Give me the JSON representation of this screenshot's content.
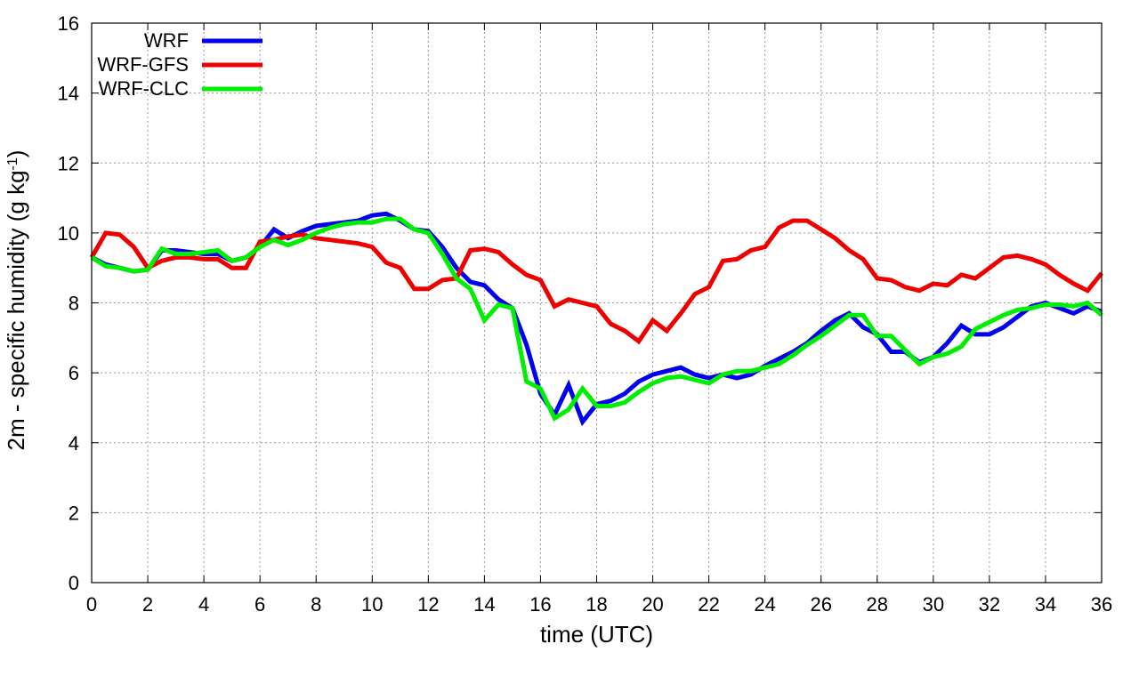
{
  "chart_data": {
    "type": "line",
    "xlabel": "time (UTC)",
    "ylabel_main": "2m - specific humidity (g kg",
    "ylabel_sup": "-1",
    "ylabel_end": ")",
    "xlim": [
      0,
      36
    ],
    "ylim": [
      0,
      16
    ],
    "x_ticks": [
      "0",
      "2",
      "4",
      "6",
      "8",
      "10",
      "12",
      "14",
      "16",
      "18",
      "20",
      "22",
      "24",
      "26",
      "28",
      "30",
      "32",
      "34",
      "36"
    ],
    "y_ticks": [
      "0",
      "2",
      "4",
      "6",
      "8",
      "10",
      "12",
      "14",
      "16"
    ],
    "grid": true,
    "legend_position": "top-left",
    "x": [
      0,
      0.5,
      1,
      1.5,
      2,
      2.5,
      3,
      3.5,
      4,
      4.5,
      5,
      5.5,
      6,
      6.5,
      7,
      7.5,
      8,
      8.5,
      9,
      9.5,
      10,
      10.5,
      11,
      11.5,
      12,
      12.5,
      13,
      13.5,
      14,
      14.5,
      15,
      15.5,
      16,
      16.5,
      17,
      17.5,
      18,
      18.5,
      19,
      19.5,
      20,
      20.5,
      21,
      21.5,
      22,
      22.5,
      23,
      23.5,
      24,
      24.5,
      25,
      25.5,
      26,
      26.5,
      27,
      27.5,
      28,
      28.5,
      29,
      29.5,
      30,
      30.5,
      31,
      31.5,
      32,
      32.5,
      33,
      33.5,
      34,
      34.5,
      35,
      35.5,
      36
    ],
    "series": [
      {
        "name": "WRF",
        "color": "#0000ee",
        "values": [
          9.3,
          9.1,
          9.0,
          8.9,
          8.95,
          9.5,
          9.5,
          9.45,
          9.4,
          9.4,
          9.2,
          9.3,
          9.6,
          10.1,
          9.85,
          10.05,
          10.2,
          10.25,
          10.3,
          10.35,
          10.5,
          10.55,
          10.35,
          10.1,
          10.05,
          9.6,
          9.0,
          8.6,
          8.5,
          8.1,
          7.85,
          6.8,
          5.4,
          4.8,
          5.65,
          4.6,
          5.1,
          5.2,
          5.4,
          5.75,
          5.95,
          6.05,
          6.15,
          5.95,
          5.85,
          5.95,
          5.85,
          5.95,
          6.2,
          6.4,
          6.6,
          6.85,
          7.2,
          7.5,
          7.7,
          7.3,
          7.1,
          6.6,
          6.6,
          6.3,
          6.45,
          6.85,
          7.35,
          7.1,
          7.1,
          7.3,
          7.6,
          7.9,
          8.0,
          7.85,
          7.7,
          7.9,
          7.75
        ]
      },
      {
        "name": "WRF-GFS",
        "color": "#ee0000",
        "values": [
          9.3,
          10.0,
          9.95,
          9.6,
          9.0,
          9.2,
          9.3,
          9.3,
          9.25,
          9.25,
          9.0,
          9.0,
          9.75,
          9.8,
          9.9,
          9.95,
          9.85,
          9.8,
          9.75,
          9.7,
          9.6,
          9.15,
          9.0,
          8.4,
          8.4,
          8.65,
          8.7,
          9.5,
          9.55,
          9.45,
          9.1,
          8.8,
          8.65,
          7.9,
          8.1,
          8.0,
          7.9,
          7.4,
          7.2,
          6.9,
          7.5,
          7.2,
          7.7,
          8.25,
          8.45,
          9.2,
          9.25,
          9.5,
          9.6,
          10.15,
          10.35,
          10.35,
          10.1,
          9.85,
          9.5,
          9.25,
          8.7,
          8.65,
          8.45,
          8.35,
          8.55,
          8.5,
          8.8,
          8.7,
          9.0,
          9.3,
          9.35,
          9.25,
          9.1,
          8.8,
          8.55,
          8.35,
          8.85
        ]
      },
      {
        "name": "WRF-CLC",
        "color": "#00ee00",
        "values": [
          9.3,
          9.05,
          9.0,
          8.9,
          8.95,
          9.55,
          9.4,
          9.4,
          9.45,
          9.5,
          9.2,
          9.3,
          9.6,
          9.8,
          9.65,
          9.8,
          10.0,
          10.15,
          10.25,
          10.3,
          10.3,
          10.4,
          10.4,
          10.1,
          10.0,
          9.4,
          8.7,
          8.4,
          7.5,
          7.95,
          7.85,
          5.75,
          5.55,
          4.7,
          4.95,
          5.55,
          5.05,
          5.05,
          5.15,
          5.45,
          5.7,
          5.85,
          5.9,
          5.8,
          5.7,
          5.95,
          6.05,
          6.05,
          6.15,
          6.25,
          6.5,
          6.8,
          7.05,
          7.35,
          7.65,
          7.65,
          7.05,
          7.05,
          6.65,
          6.25,
          6.45,
          6.55,
          6.75,
          7.25,
          7.45,
          7.65,
          7.8,
          7.85,
          7.95,
          7.95,
          7.9,
          8.0,
          7.65
        ]
      }
    ]
  }
}
